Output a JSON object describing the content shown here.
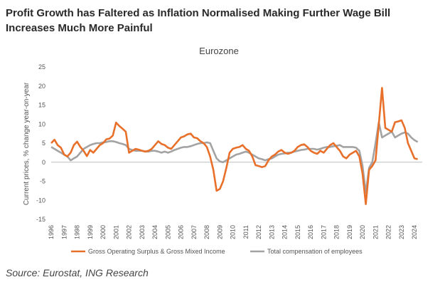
{
  "page": {
    "title": "Profit Growth has Faltered as Inflation Normalised Making Further Wage Bill Increases Much More Painful",
    "source": "Source: Eurostat, ING Research"
  },
  "chart_data": {
    "type": "line",
    "title": "Eurozone",
    "ylabel": "Current prices, % change year-on-year",
    "xlabel": "",
    "ylim": [
      -15,
      25
    ],
    "yticks": [
      -15,
      -10,
      -5,
      0,
      5,
      10,
      15,
      20,
      25
    ],
    "xlim": [
      1996,
      2024.6
    ],
    "xticks": [
      "1996",
      "1997",
      "1998",
      "1999",
      "2000",
      "2001",
      "2002",
      "2003",
      "2004",
      "2005",
      "2006",
      "2007",
      "2008",
      "2009",
      "2010",
      "2011",
      "2012",
      "2013",
      "2014",
      "2015",
      "2016",
      "2017",
      "2018",
      "2019",
      "2020",
      "2021",
      "2022",
      "2023",
      "2024"
    ],
    "grid": false,
    "legend_position": "bottom",
    "colors": {
      "gos": "#e8702a",
      "comp": "#a3a3a3"
    },
    "series": [
      {
        "name": "Gross Operating Surplus & Gross Mixed Income",
        "x": [
          1996,
          1996.25,
          1996.5,
          1996.75,
          1997,
          1997.25,
          1997.5,
          1997.75,
          1998,
          1998.25,
          1998.5,
          1998.75,
          1999,
          1999.25,
          1999.5,
          1999.75,
          2000,
          2000.25,
          2000.5,
          2000.75,
          2001,
          2001.25,
          2001.5,
          2001.75,
          2002,
          2002.25,
          2002.5,
          2002.75,
          2003,
          2003.25,
          2003.5,
          2003.75,
          2004,
          2004.25,
          2004.5,
          2004.75,
          2005,
          2005.25,
          2005.5,
          2005.75,
          2006,
          2006.25,
          2006.5,
          2006.75,
          2007,
          2007.25,
          2007.5,
          2007.75,
          2008,
          2008.25,
          2008.5,
          2008.75,
          2009,
          2009.25,
          2009.5,
          2009.75,
          2010,
          2010.25,
          2010.5,
          2010.75,
          2011,
          2011.25,
          2011.5,
          2011.75,
          2012,
          2012.25,
          2012.5,
          2012.75,
          2013,
          2013.25,
          2013.5,
          2013.75,
          2014,
          2014.25,
          2014.5,
          2014.75,
          2015,
          2015.25,
          2015.5,
          2015.75,
          2016,
          2016.25,
          2016.5,
          2016.75,
          2017,
          2017.25,
          2017.5,
          2017.75,
          2018,
          2018.25,
          2018.5,
          2018.75,
          2019,
          2019.25,
          2019.5,
          2019.75,
          2020,
          2020.25,
          2020.5,
          2020.75,
          2021,
          2021.25,
          2021.5,
          2021.75,
          2022,
          2022.25,
          2022.5,
          2022.75,
          2023,
          2023.25,
          2023.5,
          2023.75,
          2024,
          2024.25
        ],
        "values": [
          5.0,
          5.9,
          4.5,
          3.8,
          2.0,
          1.5,
          2.5,
          4.5,
          5.4,
          4.0,
          3.0,
          1.6,
          3.2,
          2.5,
          3.5,
          4.5,
          5.0,
          6.0,
          6.2,
          7.0,
          10.4,
          9.5,
          8.8,
          8.0,
          2.5,
          3.0,
          3.5,
          3.3,
          3.0,
          2.8,
          3.0,
          3.5,
          4.5,
          5.5,
          4.8,
          4.5,
          3.8,
          3.5,
          4.5,
          5.5,
          6.5,
          6.8,
          7.3,
          7.5,
          6.5,
          6.3,
          5.5,
          5.0,
          4.0,
          1.5,
          -2.0,
          -7.5,
          -7.0,
          -5.0,
          -1.5,
          2.5,
          3.5,
          3.8,
          4.0,
          4.5,
          3.5,
          3.0,
          1.5,
          -0.8,
          -1.0,
          -1.3,
          -1.0,
          0.5,
          1.5,
          2.0,
          2.8,
          3.2,
          2.5,
          2.2,
          2.5,
          3.0,
          4.0,
          4.5,
          4.7,
          4.0,
          3.0,
          2.5,
          2.2,
          3.0,
          2.5,
          3.5,
          4.5,
          5.0,
          4.0,
          3.0,
          1.5,
          1.0,
          2.0,
          2.5,
          3.0,
          1.5,
          -3.0,
          -11.0,
          -2.0,
          -1.0,
          0.5,
          10.0,
          19.5,
          9.0,
          8.5,
          8.0,
          10.5,
          10.7,
          11.0,
          9.0,
          5.0,
          3.0,
          1.0,
          0.8
        ]
      },
      {
        "name": "Total compensation of employees",
        "x": [
          1996,
          1996.25,
          1996.5,
          1996.75,
          1997,
          1997.25,
          1997.5,
          1997.75,
          1998,
          1998.25,
          1998.5,
          1998.75,
          1999,
          1999.25,
          1999.5,
          1999.75,
          2000,
          2000.25,
          2000.5,
          2000.75,
          2001,
          2001.25,
          2001.5,
          2001.75,
          2002,
          2002.25,
          2002.5,
          2002.75,
          2003,
          2003.25,
          2003.5,
          2003.75,
          2004,
          2004.25,
          2004.5,
          2004.75,
          2005,
          2005.25,
          2005.5,
          2005.75,
          2006,
          2006.25,
          2006.5,
          2006.75,
          2007,
          2007.25,
          2007.5,
          2007.75,
          2008,
          2008.25,
          2008.5,
          2008.75,
          2009,
          2009.25,
          2009.5,
          2009.75,
          2010,
          2010.25,
          2010.5,
          2010.75,
          2011,
          2011.25,
          2011.5,
          2011.75,
          2012,
          2012.25,
          2012.5,
          2012.75,
          2013,
          2013.25,
          2013.5,
          2013.75,
          2014,
          2014.25,
          2014.5,
          2014.75,
          2015,
          2015.25,
          2015.5,
          2015.75,
          2016,
          2016.25,
          2016.5,
          2016.75,
          2017,
          2017.25,
          2017.5,
          2017.75,
          2018,
          2018.25,
          2018.5,
          2018.75,
          2019,
          2019.25,
          2019.5,
          2019.75,
          2020,
          2020.25,
          2020.5,
          2020.75,
          2021,
          2021.25,
          2021.5,
          2021.75,
          2022,
          2022.25,
          2022.5,
          2022.75,
          2023,
          2023.25,
          2023.5,
          2023.75,
          2024,
          2024.25
        ],
        "values": [
          4.0,
          3.5,
          3.0,
          2.5,
          2.0,
          1.5,
          0.5,
          1.0,
          1.5,
          2.5,
          3.5,
          4.0,
          4.5,
          4.8,
          5.0,
          5.0,
          5.2,
          5.3,
          5.5,
          5.5,
          5.3,
          5.0,
          4.8,
          4.5,
          3.5,
          3.2,
          3.0,
          3.0,
          3.0,
          2.8,
          2.8,
          3.0,
          3.0,
          2.8,
          2.5,
          2.8,
          2.5,
          2.8,
          3.2,
          3.5,
          3.8,
          4.0,
          4.0,
          4.2,
          4.5,
          4.8,
          5.0,
          5.0,
          5.2,
          5.0,
          3.0,
          1.0,
          0.2,
          0.0,
          0.5,
          1.0,
          1.5,
          2.0,
          2.2,
          2.5,
          2.8,
          2.5,
          2.0,
          1.5,
          1.0,
          0.8,
          0.5,
          0.8,
          1.0,
          1.5,
          2.0,
          2.2,
          2.3,
          2.5,
          2.5,
          2.8,
          3.0,
          3.2,
          3.3,
          3.5,
          3.5,
          3.5,
          3.3,
          3.5,
          3.8,
          4.0,
          4.0,
          4.2,
          4.3,
          4.5,
          4.0,
          4.0,
          4.0,
          4.0,
          3.8,
          3.0,
          -1.0,
          -8.0,
          -1.5,
          0.0,
          5.0,
          10.5,
          6.5,
          7.0,
          7.5,
          8.0,
          6.5,
          7.0,
          7.5,
          7.8,
          7.5,
          6.5,
          5.8,
          5.3
        ]
      }
    ]
  }
}
